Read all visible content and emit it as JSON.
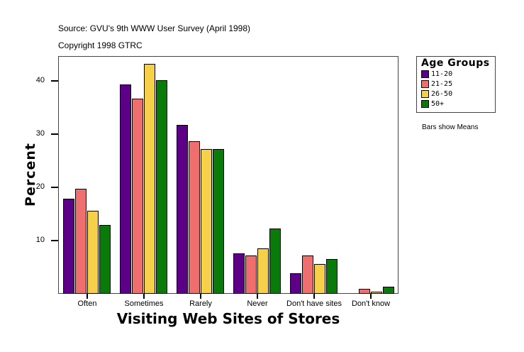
{
  "header": {
    "source": "Source: GVU's 9th WWW User Survey (April 1998)",
    "copyright": "Copyright 1998 GTRC"
  },
  "legend": {
    "title": "Age Groups",
    "items": [
      {
        "label": "11-20",
        "color": "#5c0088"
      },
      {
        "label": "21-25",
        "color": "#ef6e6e"
      },
      {
        "label": "26-50",
        "color": "#f7d04a"
      },
      {
        "label": "50+",
        "color": "#0a7a0a"
      }
    ]
  },
  "note": "Bars show Means",
  "chart_data": {
    "type": "bar",
    "title": "",
    "xlabel": "Visiting Web Sites of Stores",
    "ylabel": "Percent",
    "ylim": [
      0,
      44.7
    ],
    "yticks": [
      10,
      20,
      30,
      40
    ],
    "grid": false,
    "legend_position": "right",
    "categories": [
      "Often",
      "Sometimes",
      "Rarely",
      "Never",
      "Don't have sites",
      "Don't know"
    ],
    "series": [
      {
        "name": "11-20",
        "values": [
          17.9,
          39.3,
          31.7,
          7.6,
          3.9,
          0
        ]
      },
      {
        "name": "21-25",
        "values": [
          19.7,
          36.7,
          28.7,
          7.2,
          7.2,
          0.9
        ]
      },
      {
        "name": "26-50",
        "values": [
          15.6,
          43.2,
          27.2,
          8.5,
          5.6,
          0.4
        ]
      },
      {
        "name": "50+",
        "values": [
          12.9,
          40.1,
          27.2,
          12.3,
          6.5,
          1.3
        ]
      }
    ]
  }
}
